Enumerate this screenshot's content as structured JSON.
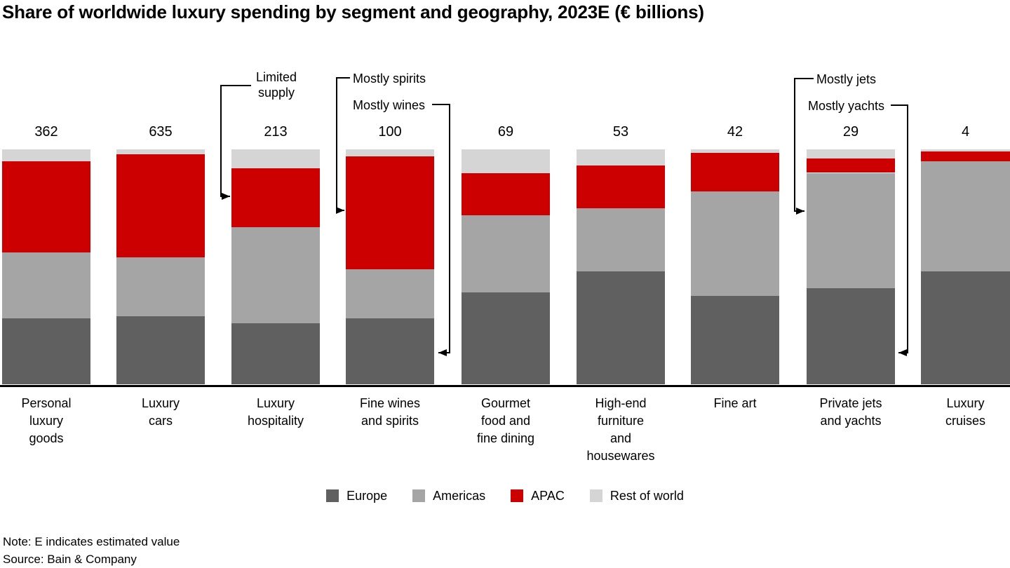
{
  "title": "Share of worldwide luxury spending by segment and geography, 2023E (€ billions)",
  "note": "Note: E indicates estimated value",
  "source": "Source: Bain & Company",
  "colors": {
    "europe": "#606060",
    "americas": "#a5a5a5",
    "apac": "#cc0000",
    "rest_of_world": "#d5d5d5",
    "axis": "#000000"
  },
  "legend": [
    {
      "key": "europe",
      "label": "Europe",
      "color": "#606060"
    },
    {
      "key": "americas",
      "label": "Americas",
      "color": "#a5a5a5"
    },
    {
      "key": "apac",
      "label": "APAC",
      "color": "#cc0000"
    },
    {
      "key": "rest_of_world",
      "label": "Rest of world",
      "color": "#d5d5d5"
    }
  ],
  "chart_data": {
    "type": "bar",
    "stacked": true,
    "normalized_to_100pct": true,
    "unit": "€ billions",
    "title": "Share of worldwide luxury spending by segment and geography, 2023E (€ billions)",
    "categories": [
      {
        "name": "Personal luxury goods",
        "lines": [
          "Personal",
          "luxury",
          "goods"
        ],
        "total": 362,
        "shares_pct": {
          "europe": 28,
          "americas": 28,
          "apac": 39,
          "rest_of_world": 5
        }
      },
      {
        "name": "Luxury cars",
        "lines": [
          "Luxury",
          "cars"
        ],
        "total": 635,
        "shares_pct": {
          "europe": 29,
          "americas": 25,
          "apac": 44,
          "rest_of_world": 2
        }
      },
      {
        "name": "Luxury hospitality",
        "lines": [
          "Luxury",
          "hospitality"
        ],
        "total": 213,
        "shares_pct": {
          "europe": 26,
          "americas": 41,
          "apac": 25,
          "rest_of_world": 8
        }
      },
      {
        "name": "Fine wines and spirits",
        "lines": [
          "Fine wines",
          "and spirits"
        ],
        "total": 100,
        "shares_pct": {
          "europe": 28,
          "americas": 21,
          "apac": 48,
          "rest_of_world": 3
        }
      },
      {
        "name": "Gourmet food and fine dining",
        "lines": [
          "Gourmet",
          "food and",
          "fine dining"
        ],
        "total": 69,
        "shares_pct": {
          "europe": 39,
          "americas": 33,
          "apac": 18,
          "rest_of_world": 10
        }
      },
      {
        "name": "High-end furniture and housewares",
        "lines": [
          "High-end",
          "furniture",
          "and",
          "housewares"
        ],
        "total": 53,
        "shares_pct": {
          "europe": 48,
          "americas": 27,
          "apac": 18,
          "rest_of_world": 7
        }
      },
      {
        "name": "Fine art",
        "lines": [
          "Fine art"
        ],
        "total": 42,
        "shares_pct": {
          "europe": 37.5,
          "americas": 44.5,
          "apac": 16.5,
          "rest_of_world": 1.5
        }
      },
      {
        "name": "Private jets and yachts",
        "lines": [
          "Private jets",
          "and yachts"
        ],
        "total": 29,
        "shares_pct": {
          "europe": 41,
          "americas": 49,
          "apac": 6,
          "rest_of_world": 4
        }
      },
      {
        "name": "Luxury cruises",
        "lines": [
          "Luxury",
          "cruises"
        ],
        "total": 4,
        "shares_pct": {
          "europe": 48,
          "americas": 47,
          "apac": 4,
          "rest_of_world": 1
        }
      }
    ],
    "series_order_bottom_to_top": [
      "europe",
      "americas",
      "apac",
      "rest_of_world"
    ],
    "series": [
      {
        "key": "europe",
        "name": "Europe",
        "color": "#606060"
      },
      {
        "key": "americas",
        "name": "Americas",
        "color": "#a5a5a5"
      },
      {
        "key": "apac",
        "name": "APAC",
        "color": "#cc0000"
      },
      {
        "key": "rest_of_world",
        "name": "Rest of world",
        "color": "#d5d5d5"
      }
    ],
    "annotations": [
      {
        "id": "limited-supply",
        "lines": [
          "Limited",
          "supply"
        ],
        "label": "Limited supply",
        "target": "Luxury hospitality APAC segment"
      },
      {
        "id": "mostly-spirits",
        "lines": [
          "Mostly spirits"
        ],
        "label": "Mostly spirits",
        "target": "Fine wines and spirits APAC segment"
      },
      {
        "id": "mostly-wines",
        "lines": [
          "Mostly wines"
        ],
        "label": "Mostly wines",
        "target": "Fine wines and spirits Europe segment"
      },
      {
        "id": "mostly-jets",
        "lines": [
          "Mostly jets"
        ],
        "label": "Mostly jets",
        "target": "Private jets and yachts APAC segment"
      },
      {
        "id": "mostly-yachts",
        "lines": [
          "Mostly yachts"
        ],
        "label": "Mostly yachts",
        "target": "Private jets and yachts Europe segment"
      }
    ],
    "legend_position": "bottom-center",
    "axis": {
      "x_axis_line": true,
      "y_axis_visible": false
    }
  }
}
